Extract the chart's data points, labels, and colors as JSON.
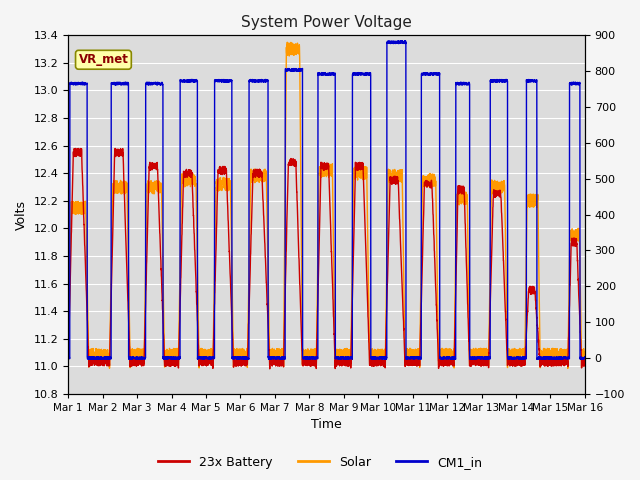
{
  "title": "System Power Voltage",
  "ylabel_left": "Volts",
  "xlabel": "Time",
  "ylim_left": [
    10.8,
    13.4
  ],
  "ylim_right": [
    -100,
    900
  ],
  "yticks_left": [
    10.8,
    11.0,
    11.2,
    11.4,
    11.6,
    11.8,
    12.0,
    12.2,
    12.4,
    12.6,
    12.8,
    13.0,
    13.2,
    13.4
  ],
  "yticks_right": [
    -100,
    0,
    100,
    200,
    300,
    400,
    500,
    600,
    700,
    800,
    900
  ],
  "xtick_labels": [
    "Mar 1",
    "Mar 2",
    "Mar 3",
    "Mar 4",
    "Mar 5",
    "Mar 6",
    "Mar 7",
    "Mar 8",
    "Mar 9",
    "Mar 10",
    "Mar 11",
    "Mar 12",
    "Mar 13",
    "Mar 14",
    "Mar 15",
    "Mar 16"
  ],
  "bg_color": "#dcdcdc",
  "fig_bg_color": "#f5f5f5",
  "line_colors": {
    "battery": "#cc0000",
    "solar": "#ff9900",
    "cm1": "#0000cc"
  },
  "legend_labels": [
    "23x Battery",
    "Solar",
    "CM1_in"
  ],
  "vr_met_label": "VR_met",
  "title_color": "#222222",
  "grid_color": "#ffffff",
  "title_fontsize": 11,
  "tick_fontsize": 8,
  "label_fontsize": 9
}
